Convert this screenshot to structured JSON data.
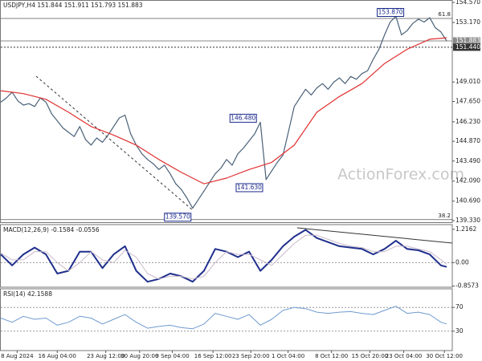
{
  "chart_data": [
    {
      "type": "line",
      "title": "USDJPY,H4 151.844 151.911 151.793 151.883",
      "watermark": "ActionForex.com",
      "xlim": [
        0,
        80
      ],
      "ylim": [
        139.33,
        154.57
      ],
      "yticks": [
        {
          "value": 154.57,
          "label": "154.570"
        },
        {
          "value": 153.17,
          "label": "153.170"
        },
        {
          "value": 149.01,
          "label": "149.010"
        },
        {
          "value": 147.65,
          "label": "147.650"
        },
        {
          "value": 146.23,
          "label": "146.230"
        },
        {
          "value": 144.87,
          "label": "144.870"
        },
        {
          "value": 143.49,
          "label": "143.490"
        },
        {
          "value": 142.09,
          "label": "142.090"
        },
        {
          "value": 140.69,
          "label": "140.690"
        },
        {
          "value": 139.33,
          "label": "139.330"
        }
      ],
      "price_levels": [
        {
          "value": 151.883,
          "label": "151.883",
          "color": "#8a8a8a",
          "style": "solid"
        },
        {
          "value": 151.44,
          "label": "151.440",
          "color": "#333333",
          "style": "dotted"
        }
      ],
      "fib_levels": [
        {
          "value": 153.45,
          "label": "61.8"
        },
        {
          "value": 139.4,
          "label": "38.2"
        }
      ],
      "annotations": [
        {
          "value": 153.87,
          "label": "153.870",
          "x": 71.4
        },
        {
          "value": 146.48,
          "label": "146.480",
          "x": 45.3
        },
        {
          "value": 141.63,
          "label": "141.630",
          "x": 46.4
        },
        {
          "value": 139.57,
          "label": "139.570",
          "x": 33.7
        }
      ],
      "series": [
        {
          "color": "#4a6178",
          "width": 1.2,
          "x": [
            0,
            1,
            2,
            3,
            4,
            5,
            6,
            7,
            8,
            9,
            10,
            11,
            12,
            13,
            14,
            15,
            16,
            17,
            18,
            19,
            20,
            21,
            22,
            23,
            24,
            25,
            26,
            27,
            28,
            29,
            30,
            31,
            32,
            33,
            34,
            35,
            36,
            37,
            38,
            39,
            40,
            41,
            42,
            43,
            44,
            45,
            46,
            47,
            48,
            49,
            50,
            51,
            52,
            53,
            54,
            55,
            56,
            57,
            58,
            59,
            60,
            61,
            62,
            63,
            64,
            65,
            66,
            67,
            68,
            69,
            70,
            71,
            72,
            73,
            74,
            75,
            76,
            77,
            78,
            79
          ],
          "values": [
            147.6,
            147.9,
            148.3,
            147.7,
            147.4,
            147.5,
            147.3,
            147.9,
            147.6,
            146.8,
            146.3,
            145.8,
            145.5,
            145.2,
            145.9,
            145.0,
            144.6,
            145.1,
            144.8,
            145.3,
            145.9,
            146.5,
            146.7,
            145.4,
            144.6,
            144.0,
            143.6,
            143.3,
            142.9,
            143.2,
            142.6,
            141.9,
            141.5,
            140.9,
            140.2,
            140.8,
            141.4,
            142.0,
            142.6,
            143.0,
            143.6,
            143.2,
            144.0,
            144.4,
            144.9,
            145.4,
            146.2,
            142.2,
            142.8,
            143.4,
            143.9,
            145.6,
            147.3,
            147.9,
            148.5,
            148.1,
            148.6,
            148.9,
            148.5,
            149.0,
            149.3,
            148.9,
            149.4,
            149.2,
            149.6,
            149.8,
            150.6,
            151.3,
            152.3,
            153.2,
            153.6,
            152.3,
            152.6,
            153.1,
            153.4,
            153.2,
            153.5,
            152.8,
            152.5,
            151.883
          ]
        },
        {
          "color": "#e03030",
          "width": 1.2,
          "x": [
            0,
            4,
            8,
            12,
            16,
            20,
            24,
            28,
            32,
            36,
            40,
            44,
            48,
            52,
            56,
            60,
            64,
            68,
            72,
            76,
            79
          ],
          "values": [
            148.4,
            148.2,
            147.8,
            146.9,
            145.9,
            145.3,
            144.6,
            143.6,
            142.7,
            141.9,
            142.3,
            142.9,
            143.4,
            144.6,
            146.9,
            148.0,
            148.9,
            150.3,
            151.3,
            152.0,
            152.1
          ]
        }
      ]
    },
    {
      "type": "line",
      "title": "MACD(12,26,9) -0.1584 -0.0556",
      "xlim": [
        0,
        80
      ],
      "ylim": [
        -0.87,
        1.36
      ],
      "yticks": [
        1.2162,
        {
          "value": 0,
          "label": "0.00"
        },
        -0.8573
      ],
      "zero_line": true,
      "series": [
        {
          "color": "#1f2f8c",
          "width": 2,
          "x": [
            0,
            2,
            4,
            6,
            8,
            10,
            12,
            14,
            16,
            18,
            20,
            22,
            24,
            26,
            28,
            30,
            32,
            34,
            36,
            38,
            40,
            42,
            44,
            46,
            48,
            50,
            52,
            54,
            56,
            58,
            60,
            62,
            64,
            66,
            68,
            70,
            72,
            74,
            76,
            78,
            79
          ],
          "values": [
            0.3,
            -0.1,
            0.3,
            0.55,
            0.3,
            -0.4,
            -0.3,
            0.4,
            0.4,
            -0.2,
            0.3,
            0.6,
            -0.3,
            -0.7,
            -0.6,
            -0.4,
            -0.5,
            -0.7,
            -0.3,
            0.5,
            0.4,
            0.2,
            0.4,
            -0.3,
            0.1,
            0.6,
            0.95,
            1.2,
            0.9,
            0.75,
            0.6,
            0.55,
            0.5,
            0.3,
            0.5,
            0.8,
            0.5,
            0.45,
            0.3,
            -0.1,
            -0.1584
          ]
        },
        {
          "color": "#c9b9c9",
          "width": 1,
          "x": [
            0,
            2,
            4,
            6,
            8,
            10,
            12,
            14,
            16,
            18,
            20,
            22,
            24,
            26,
            28,
            30,
            32,
            34,
            36,
            38,
            40,
            42,
            44,
            46,
            48,
            50,
            52,
            54,
            56,
            58,
            60,
            62,
            64,
            66,
            68,
            70,
            72,
            74,
            76,
            78,
            79
          ],
          "values": [
            0.35,
            0.1,
            0.1,
            0.4,
            0.4,
            0.0,
            -0.3,
            0.0,
            0.4,
            0.1,
            0.0,
            0.45,
            0.2,
            -0.4,
            -0.6,
            -0.5,
            -0.5,
            -0.6,
            -0.5,
            0.0,
            0.4,
            0.3,
            0.3,
            0.1,
            -0.1,
            0.3,
            0.7,
            1.0,
            1.0,
            0.85,
            0.7,
            0.6,
            0.55,
            0.4,
            0.4,
            0.6,
            0.6,
            0.5,
            0.4,
            0.1,
            -0.0556
          ]
        }
      ]
    },
    {
      "type": "line",
      "title": "RSI(14) 42.1588",
      "xlim": [
        0,
        80
      ],
      "ylim": [
        0,
        100
      ],
      "yticks": [
        70,
        30
      ],
      "grid": true,
      "xticks": [
        {
          "value": 2.9,
          "label": "8 Aug 2024"
        },
        {
          "value": 10,
          "label": "16 Aug 04:00"
        },
        {
          "value": 18.6,
          "label": "23 Aug 12:00"
        },
        {
          "value": 24.6,
          "label": "30 Aug 20:00"
        },
        {
          "value": 30.4,
          "label": "9 Sep 04:00"
        },
        {
          "value": 37.6,
          "label": "16 Sep 12:00"
        },
        {
          "value": 44.3,
          "label": "23 Sep 20:00"
        },
        {
          "value": 50.9,
          "label": "1 Oct 04:00"
        },
        {
          "value": 58.6,
          "label": "8 Oct 12:00"
        },
        {
          "value": 65.4,
          "label": "15 Oct 20:00"
        },
        {
          "value": 71.4,
          "label": "23 Oct 04:00"
        },
        {
          "value": 78.6,
          "label": "30 Oct 12:00"
        }
      ],
      "series": [
        {
          "color": "#6f9bd1",
          "width": 1,
          "x": [
            0,
            2,
            4,
            6,
            8,
            10,
            12,
            14,
            16,
            18,
            20,
            22,
            24,
            26,
            28,
            30,
            32,
            34,
            36,
            38,
            40,
            42,
            44,
            46,
            48,
            50,
            52,
            54,
            56,
            58,
            60,
            62,
            64,
            66,
            68,
            70,
            72,
            74,
            76,
            78,
            79
          ],
          "values": [
            52,
            45,
            55,
            50,
            52,
            40,
            45,
            55,
            52,
            42,
            50,
            58,
            45,
            35,
            38,
            40,
            36,
            34,
            42,
            60,
            55,
            50,
            58,
            40,
            50,
            65,
            70,
            68,
            62,
            60,
            62,
            63,
            60,
            58,
            65,
            72,
            60,
            62,
            58,
            45,
            42.1588
          ]
        }
      ]
    }
  ]
}
